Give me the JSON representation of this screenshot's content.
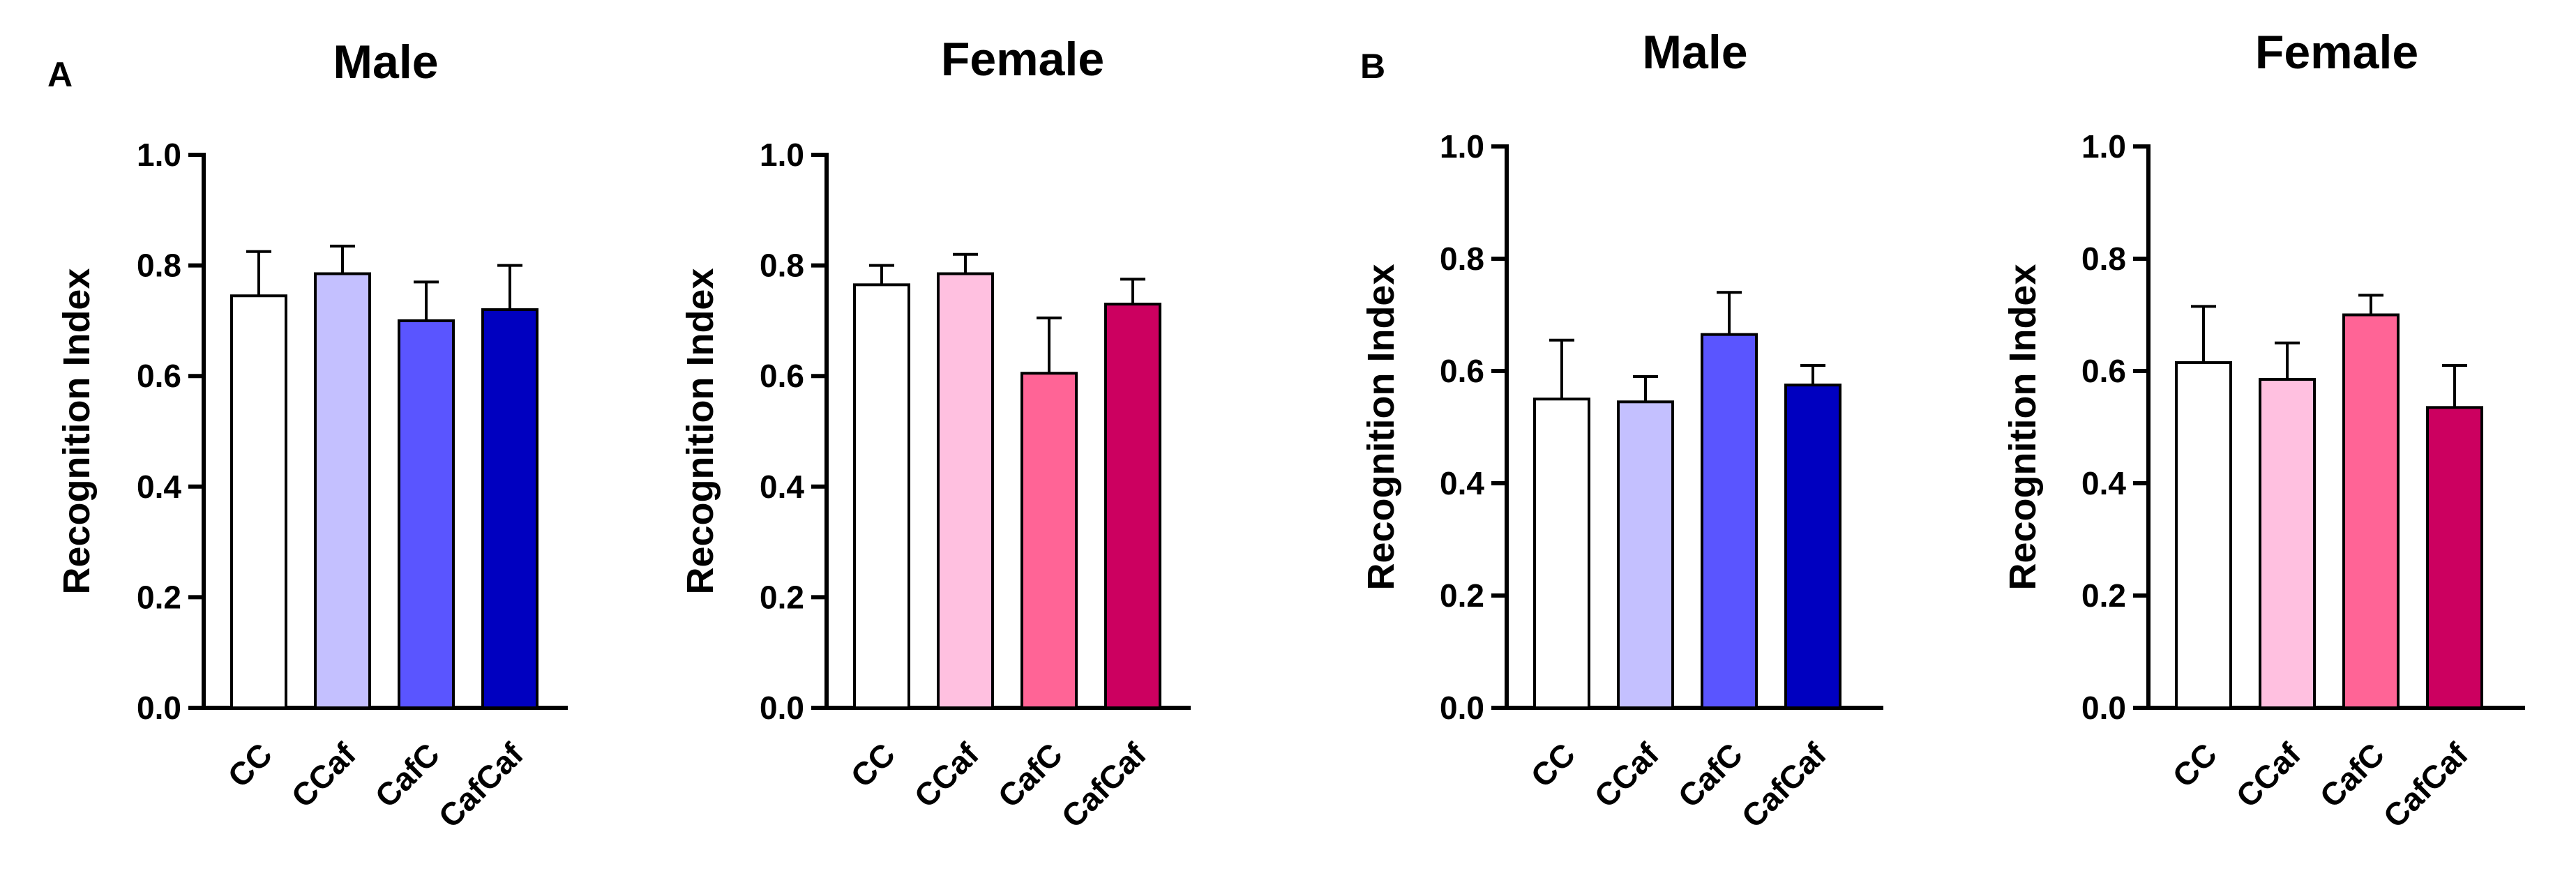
{
  "panel_labels": [
    "A",
    "B"
  ],
  "chart_data": [
    {
      "type": "bar",
      "panel": "A",
      "title": "Male",
      "xlabel": "",
      "ylabel": "Recognition Index",
      "ylim": [
        0,
        1.0
      ],
      "yticks": [
        "0.0",
        "0.2",
        "0.4",
        "0.6",
        "0.8",
        "1.0"
      ],
      "categories": [
        "CC",
        "CCaf",
        "CafC",
        "CafCaf"
      ],
      "values": [
        0.745,
        0.785,
        0.7,
        0.72
      ],
      "errors": [
        0.08,
        0.05,
        0.07,
        0.08
      ],
      "colors": [
        "#ffffff",
        "#c4c0ff",
        "#5a55ff",
        "#0000c0"
      ]
    },
    {
      "type": "bar",
      "panel": "A",
      "title": "Female",
      "xlabel": "",
      "ylabel": "Recognition Index",
      "ylim": [
        0,
        1.0
      ],
      "yticks": [
        "0.0",
        "0.2",
        "0.4",
        "0.6",
        "0.8",
        "1.0"
      ],
      "categories": [
        "CC",
        "CCaf",
        "CafC",
        "CafCaf"
      ],
      "values": [
        0.765,
        0.785,
        0.605,
        0.73
      ],
      "errors": [
        0.035,
        0.035,
        0.1,
        0.045
      ],
      "colors": [
        "#ffffff",
        "#ffc0e0",
        "#ff6496",
        "#cc0060"
      ]
    },
    {
      "type": "bar",
      "panel": "B",
      "title": "Male",
      "xlabel": "",
      "ylabel": "Recognition Index",
      "ylim": [
        0,
        1.0
      ],
      "yticks": [
        "0.0",
        "0.2",
        "0.4",
        "0.6",
        "0.8",
        "1.0"
      ],
      "categories": [
        "CC",
        "CCaf",
        "CafC",
        "CafCaf"
      ],
      "values": [
        0.55,
        0.545,
        0.665,
        0.575
      ],
      "errors": [
        0.105,
        0.045,
        0.075,
        0.035
      ],
      "colors": [
        "#ffffff",
        "#c4c0ff",
        "#5a55ff",
        "#0000c0"
      ]
    },
    {
      "type": "bar",
      "panel": "B",
      "title": "Female",
      "xlabel": "",
      "ylabel": "Recognition Index",
      "ylim": [
        0,
        1.0
      ],
      "yticks": [
        "0.0",
        "0.2",
        "0.4",
        "0.6",
        "0.8",
        "1.0"
      ],
      "categories": [
        "CC",
        "CCaf",
        "CafC",
        "CafCaf"
      ],
      "values": [
        0.615,
        0.585,
        0.7,
        0.535
      ],
      "errors": [
        0.1,
        0.065,
        0.035,
        0.075
      ],
      "colors": [
        "#ffffff",
        "#ffc0e0",
        "#ff6496",
        "#cc0060"
      ]
    }
  ]
}
